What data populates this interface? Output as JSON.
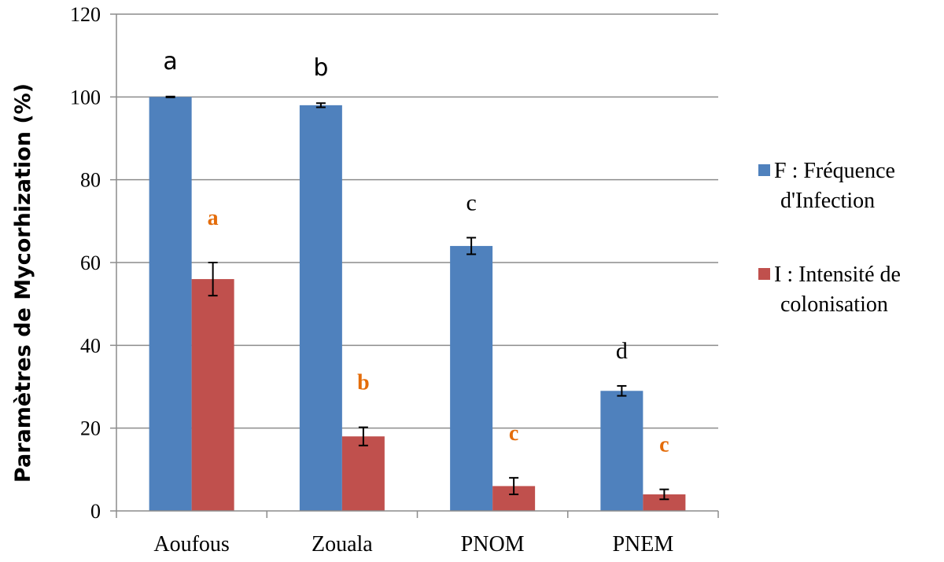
{
  "chart_data": {
    "type": "bar",
    "title": "",
    "xlabel": "",
    "ylabel": "Paramètres de Mycorhization (%)",
    "ylim": [
      0,
      120
    ],
    "yticks": [
      "0",
      "20",
      "40",
      "60",
      "80",
      "100",
      "120"
    ],
    "grid": true,
    "legend_position": "right",
    "categories": [
      "Aoufous",
      "Zouala",
      "PNOM",
      "PNEM"
    ],
    "series": [
      {
        "name_lines": [
          "F : Fréquence",
          "d'Infection"
        ],
        "color": "#4F81BD",
        "values": [
          100,
          98,
          64,
          29
        ],
        "errors": [
          0.1,
          0.5,
          2,
          1.2
        ],
        "letters": [
          "a",
          "b",
          "c",
          "d"
        ],
        "letter_color": "#000000"
      },
      {
        "name_lines": [
          "I : Intensité de",
          "colonisation"
        ],
        "color": "#C0504D",
        "values": [
          56,
          18,
          6,
          4
        ],
        "errors": [
          4,
          2.2,
          2,
          1.2
        ],
        "letters": [
          "a",
          "b",
          "c",
          "c"
        ],
        "letter_color": "#E46C0A"
      }
    ]
  }
}
